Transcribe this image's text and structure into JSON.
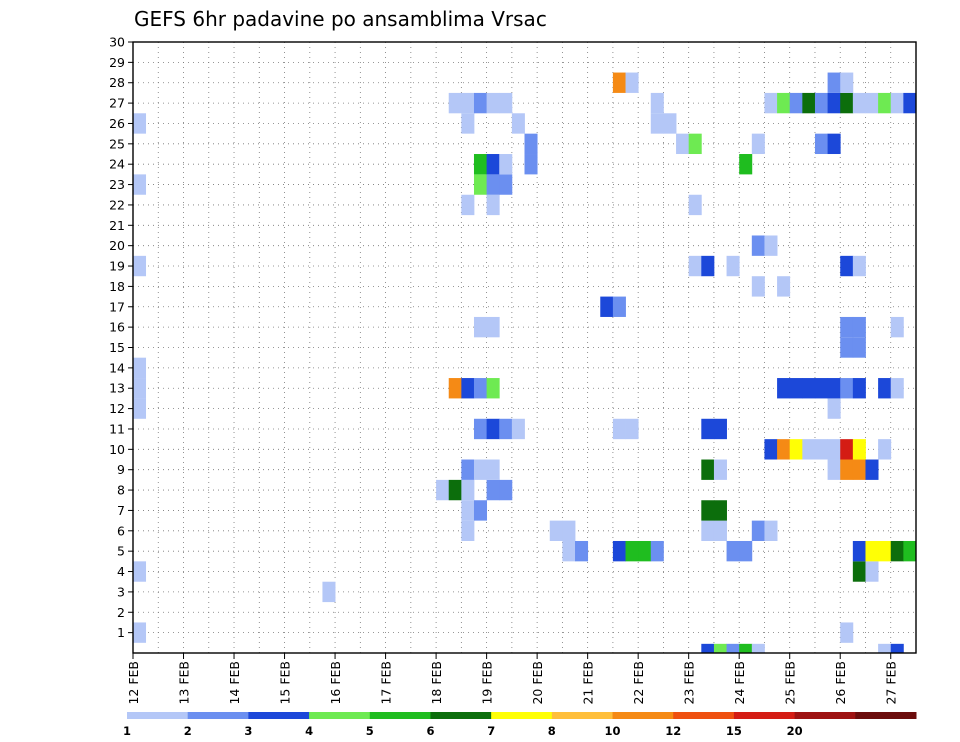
{
  "chart_data": {
    "type": "heatmap",
    "title": "GEFS 6hr padavine po ansamblima Vrsac",
    "xlabel": "",
    "ylabel": "",
    "y_ticks": [
      "1",
      "2",
      "3",
      "4",
      "5",
      "6",
      "7",
      "8",
      "9",
      "10",
      "11",
      "12",
      "13",
      "14",
      "15",
      "16",
      "17",
      "18",
      "19",
      "20",
      "21",
      "22",
      "23",
      "24",
      "25",
      "26",
      "27",
      "28",
      "29",
      "30"
    ],
    "ylim": [
      0,
      30
    ],
    "x_ticks": [
      "12 FEB",
      "13 FEB",
      "14 FEB",
      "15 FEB",
      "16 FEB",
      "17 FEB",
      "18 FEB",
      "19 FEB",
      "20 FEB",
      "21 FEB",
      "22 FEB",
      "23 FEB",
      "24 FEB",
      "25 FEB",
      "26 FEB",
      "27 FEB"
    ],
    "x_unit": "6-hour step from 12 FEB 00",
    "x_range_steps": [
      0,
      61
    ],
    "grid": true,
    "legend_position": "bottom",
    "colorbar": {
      "labels": [
        "1",
        "2",
        "3",
        "4",
        "5",
        "6",
        "7",
        "8",
        "10",
        "12",
        "15",
        "20"
      ],
      "colors": [
        "#b4c7f7",
        "#6b8ff0",
        "#1c48d9",
        "#6eea52",
        "#1fbd1f",
        "#0c6e0c",
        "#ffff05",
        "#ffbf3b",
        "#f58a15",
        "#ef5010",
        "#d41c14",
        "#9e1212",
        "#6b0c0c"
      ]
    },
    "cells": [
      {
        "step": 0,
        "member": 1,
        "value": 1
      },
      {
        "step": 0,
        "member": 4,
        "value": 1
      },
      {
        "step": 0,
        "member": 12,
        "value": 1
      },
      {
        "step": 0,
        "member": 13,
        "value": 1
      },
      {
        "step": 0,
        "member": 14,
        "value": 1
      },
      {
        "step": 0,
        "member": 19,
        "value": 1
      },
      {
        "step": 0,
        "member": 23,
        "value": 1
      },
      {
        "step": 0,
        "member": 26,
        "value": 1
      },
      {
        "step": 15,
        "member": 3,
        "value": 1
      },
      {
        "step": 24,
        "member": 8,
        "value": 1
      },
      {
        "step": 25,
        "member": 8,
        "value": 6
      },
      {
        "step": 25,
        "member": 13,
        "value": 10
      },
      {
        "step": 25,
        "member": 27,
        "value": 1
      },
      {
        "step": 26,
        "member": 6,
        "value": 1
      },
      {
        "step": 26,
        "member": 7,
        "value": 1
      },
      {
        "step": 26,
        "member": 8,
        "value": 1
      },
      {
        "step": 26,
        "member": 9,
        "value": 2
      },
      {
        "step": 26,
        "member": 13,
        "value": 3
      },
      {
        "step": 26,
        "member": 22,
        "value": 1
      },
      {
        "step": 26,
        "member": 26,
        "value": 1
      },
      {
        "step": 26,
        "member": 27,
        "value": 1
      },
      {
        "step": 27,
        "member": 7,
        "value": 2
      },
      {
        "step": 27,
        "member": 9,
        "value": 1
      },
      {
        "step": 27,
        "member": 11,
        "value": 2
      },
      {
        "step": 27,
        "member": 13,
        "value": 2
      },
      {
        "step": 27,
        "member": 16,
        "value": 1
      },
      {
        "step": 27,
        "member": 23,
        "value": 4
      },
      {
        "step": 27,
        "member": 24,
        "value": 5
      },
      {
        "step": 27,
        "member": 27,
        "value": 2
      },
      {
        "step": 28,
        "member": 8,
        "value": 2
      },
      {
        "step": 28,
        "member": 9,
        "value": 1
      },
      {
        "step": 28,
        "member": 11,
        "value": 3
      },
      {
        "step": 28,
        "member": 13,
        "value": 4
      },
      {
        "step": 28,
        "member": 16,
        "value": 1
      },
      {
        "step": 28,
        "member": 22,
        "value": 1
      },
      {
        "step": 28,
        "member": 23,
        "value": 2
      },
      {
        "step": 28,
        "member": 24,
        "value": 3
      },
      {
        "step": 28,
        "member": 27,
        "value": 1
      },
      {
        "step": 29,
        "member": 8,
        "value": 2
      },
      {
        "step": 29,
        "member": 11,
        "value": 2
      },
      {
        "step": 29,
        "member": 23,
        "value": 2
      },
      {
        "step": 29,
        "member": 24,
        "value": 1
      },
      {
        "step": 29,
        "member": 27,
        "value": 1
      },
      {
        "step": 30,
        "member": 11,
        "value": 1
      },
      {
        "step": 30,
        "member": 26,
        "value": 1
      },
      {
        "step": 31,
        "member": 24,
        "value": 2
      },
      {
        "step": 31,
        "member": 25,
        "value": 2
      },
      {
        "step": 33,
        "member": 6,
        "value": 1
      },
      {
        "step": 34,
        "member": 5,
        "value": 1
      },
      {
        "step": 34,
        "member": 6,
        "value": 1
      },
      {
        "step": 35,
        "member": 5,
        "value": 2
      },
      {
        "step": 37,
        "member": 17,
        "value": 3
      },
      {
        "step": 38,
        "member": 5,
        "value": 3
      },
      {
        "step": 38,
        "member": 11,
        "value": 1
      },
      {
        "step": 38,
        "member": 17,
        "value": 2
      },
      {
        "step": 38,
        "member": 28,
        "value": 10
      },
      {
        "step": 39,
        "member": 5,
        "value": 5
      },
      {
        "step": 39,
        "member": 11,
        "value": 1
      },
      {
        "step": 39,
        "member": 28,
        "value": 1
      },
      {
        "step": 40,
        "member": 5,
        "value": 5
      },
      {
        "step": 41,
        "member": 5,
        "value": 2
      },
      {
        "step": 41,
        "member": 26,
        "value": 1
      },
      {
        "step": 41,
        "member": 27,
        "value": 1
      },
      {
        "step": 42,
        "member": 26,
        "value": 1
      },
      {
        "step": 43,
        "member": 25,
        "value": 1
      },
      {
        "step": 44,
        "member": 19,
        "value": 1
      },
      {
        "step": 44,
        "member": 22,
        "value": 1
      },
      {
        "step": 44,
        "member": 25,
        "value": 4
      },
      {
        "step": 45,
        "member": 0,
        "value": 3
      },
      {
        "step": 45,
        "member": 6,
        "value": 1
      },
      {
        "step": 45,
        "member": 7,
        "value": 6
      },
      {
        "step": 45,
        "member": 9,
        "value": 6
      },
      {
        "step": 45,
        "member": 11,
        "value": 3
      },
      {
        "step": 45,
        "member": 19,
        "value": 3
      },
      {
        "step": 46,
        "member": 0,
        "value": 4
      },
      {
        "step": 46,
        "member": 6,
        "value": 1
      },
      {
        "step": 46,
        "member": 7,
        "value": 6
      },
      {
        "step": 46,
        "member": 9,
        "value": 1
      },
      {
        "step": 46,
        "member": 11,
        "value": 3
      },
      {
        "step": 47,
        "member": 0,
        "value": 2
      },
      {
        "step": 47,
        "member": 5,
        "value": 2
      },
      {
        "step": 47,
        "member": 19,
        "value": 1
      },
      {
        "step": 48,
        "member": 0,
        "value": 5
      },
      {
        "step": 48,
        "member": 5,
        "value": 2
      },
      {
        "step": 48,
        "member": 24,
        "value": 5
      },
      {
        "step": 49,
        "member": 0,
        "value": 1
      },
      {
        "step": 49,
        "member": 6,
        "value": 2
      },
      {
        "step": 49,
        "member": 18,
        "value": 1
      },
      {
        "step": 49,
        "member": 20,
        "value": 2
      },
      {
        "step": 49,
        "member": 25,
        "value": 1
      },
      {
        "step": 50,
        "member": 6,
        "value": 1
      },
      {
        "step": 50,
        "member": 10,
        "value": 3
      },
      {
        "step": 50,
        "member": 20,
        "value": 1
      },
      {
        "step": 50,
        "member": 27,
        "value": 1
      },
      {
        "step": 51,
        "member": 10,
        "value": 10
      },
      {
        "step": 51,
        "member": 13,
        "value": 3
      },
      {
        "step": 51,
        "member": 18,
        "value": 1
      },
      {
        "step": 51,
        "member": 27,
        "value": 4
      },
      {
        "step": 52,
        "member": 10,
        "value": 7
      },
      {
        "step": 52,
        "member": 13,
        "value": 3
      },
      {
        "step": 52,
        "member": 27,
        "value": 2
      },
      {
        "step": 53,
        "member": 10,
        "value": 1
      },
      {
        "step": 53,
        "member": 13,
        "value": 3
      },
      {
        "step": 53,
        "member": 27,
        "value": 6
      },
      {
        "step": 54,
        "member": 10,
        "value": 1
      },
      {
        "step": 54,
        "member": 13,
        "value": 3
      },
      {
        "step": 54,
        "member": 25,
        "value": 2
      },
      {
        "step": 54,
        "member": 27,
        "value": 2
      },
      {
        "step": 55,
        "member": 9,
        "value": 1
      },
      {
        "step": 55,
        "member": 10,
        "value": 1
      },
      {
        "step": 55,
        "member": 12,
        "value": 1
      },
      {
        "step": 55,
        "member": 13,
        "value": 3
      },
      {
        "step": 55,
        "member": 25,
        "value": 3
      },
      {
        "step": 55,
        "member": 27,
        "value": 3
      },
      {
        "step": 55,
        "member": 28,
        "value": 2
      },
      {
        "step": 56,
        "member": 1,
        "value": 1
      },
      {
        "step": 56,
        "member": 9,
        "value": 10
      },
      {
        "step": 56,
        "member": 10,
        "value": 15
      },
      {
        "step": 56,
        "member": 13,
        "value": 2
      },
      {
        "step": 56,
        "member": 15,
        "value": 2
      },
      {
        "step": 56,
        "member": 16,
        "value": 2
      },
      {
        "step": 56,
        "member": 19,
        "value": 3
      },
      {
        "step": 56,
        "member": 27,
        "value": 6
      },
      {
        "step": 56,
        "member": 28,
        "value": 1
      },
      {
        "step": 57,
        "member": 4,
        "value": 6
      },
      {
        "step": 57,
        "member": 5,
        "value": 3
      },
      {
        "step": 57,
        "member": 9,
        "value": 10
      },
      {
        "step": 57,
        "member": 10,
        "value": 7
      },
      {
        "step": 57,
        "member": 13,
        "value": 3
      },
      {
        "step": 57,
        "member": 15,
        "value": 2
      },
      {
        "step": 57,
        "member": 16,
        "value": 2
      },
      {
        "step": 57,
        "member": 19,
        "value": 1
      },
      {
        "step": 57,
        "member": 27,
        "value": 1
      },
      {
        "step": 58,
        "member": 4,
        "value": 1
      },
      {
        "step": 58,
        "member": 5,
        "value": 7
      },
      {
        "step": 58,
        "member": 9,
        "value": 3
      },
      {
        "step": 58,
        "member": 27,
        "value": 1
      },
      {
        "step": 59,
        "member": 0,
        "value": 1
      },
      {
        "step": 59,
        "member": 5,
        "value": 7
      },
      {
        "step": 59,
        "member": 10,
        "value": 1
      },
      {
        "step": 59,
        "member": 13,
        "value": 3
      },
      {
        "step": 59,
        "member": 27,
        "value": 4
      },
      {
        "step": 60,
        "member": 0,
        "value": 3
      },
      {
        "step": 60,
        "member": 5,
        "value": 6
      },
      {
        "step": 60,
        "member": 13,
        "value": 1
      },
      {
        "step": 60,
        "member": 16,
        "value": 1
      },
      {
        "step": 60,
        "member": 27,
        "value": 1
      },
      {
        "step": 61,
        "member": 5,
        "value": 5
      },
      {
        "step": 61,
        "member": 27,
        "value": 3
      }
    ]
  }
}
